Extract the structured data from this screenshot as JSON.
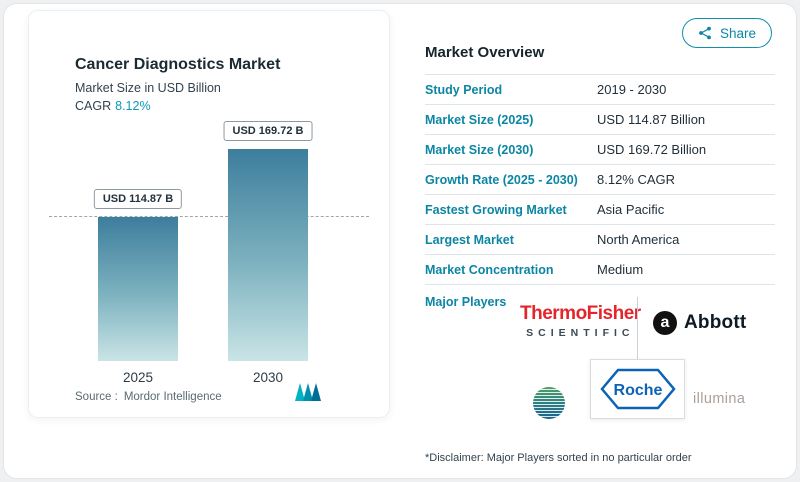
{
  "share": {
    "label": "Share"
  },
  "chart_card": {
    "title": "Cancer Diagnostics Market",
    "subtitle": "Market Size in USD Billion",
    "cagr_label": "CAGR",
    "cagr_value": "8.12%",
    "source_label": "Source :",
    "source_value": "Mordor Intelligence"
  },
  "chart_data": {
    "type": "bar",
    "title": "Cancer Diagnostics Market",
    "subtitle": "Market Size in USD Billion",
    "unit": "USD Billion",
    "categories": [
      "2025",
      "2030"
    ],
    "values": [
      114.87,
      169.72
    ],
    "bar_labels": [
      "USD 114.87 B",
      "USD 169.72 B"
    ],
    "cagr": "8.12%",
    "ylim": [
      0,
      200
    ],
    "grid": false,
    "legend": false,
    "reference_line": 114.87
  },
  "overview": {
    "title": "Market Overview",
    "rows": [
      {
        "label": "Study Period",
        "value": "2019 - 2030"
      },
      {
        "label": "Market Size (2025)",
        "value": "USD 114.87 Billion"
      },
      {
        "label": "Market Size (2030)",
        "value": "USD 169.72 Billion"
      },
      {
        "label": "Growth Rate (2025 - 2030)",
        "value": "8.12% CAGR"
      },
      {
        "label": "Fastest Growing Market",
        "value": "Asia Pacific"
      },
      {
        "label": "Largest Market",
        "value": "North America"
      },
      {
        "label": "Market Concentration",
        "value": "Medium"
      }
    ],
    "major_players_label": "Major Players",
    "players": {
      "thermo_line1": "ThermoFisher",
      "thermo_line2": "SCIENTIFIC",
      "abbott_symbol": "a",
      "abbott": "Abbott",
      "roche": "Roche",
      "illumina": "illumina"
    },
    "disclaimer": "*Disclaimer: Major Players sorted in no particular order"
  },
  "colors": {
    "accent_teal": "#0b86a4",
    "bar_gradient_top": "#3d7e9d",
    "bar_gradient_bottom": "#c9e4e6",
    "thermo_red": "#e3262c",
    "roche_blue": "#0b63b8",
    "abbott_black": "#0f1b24"
  }
}
